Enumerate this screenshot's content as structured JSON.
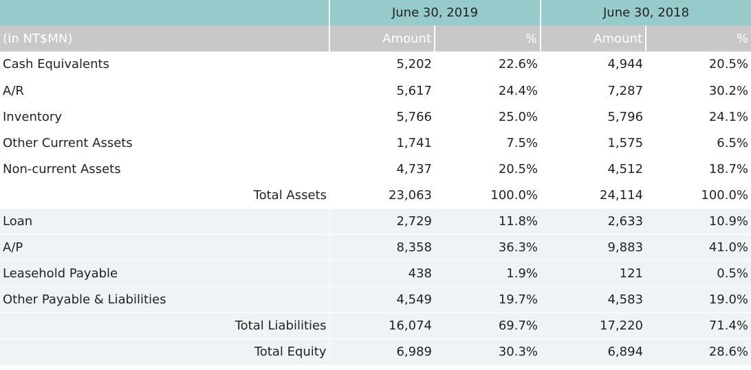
{
  "header": {
    "periods": [
      "June 30, 2019",
      "June 30, 2018"
    ],
    "unit": "(In NT$MN)",
    "columns": [
      "Amount",
      "%",
      "Amount",
      "%"
    ]
  },
  "rows": [
    {
      "label": "Cash Equivalents",
      "v": [
        "5,202",
        "22.6%",
        "4,944",
        "20.5%"
      ]
    },
    {
      "label": "A/R",
      "v": [
        "5,617",
        "24.4%",
        "7,287",
        "30.2%"
      ]
    },
    {
      "label": "Inventory",
      "v": [
        "5,766",
        "25.0%",
        "5,796",
        "24.1%"
      ]
    },
    {
      "label": "Other Current Assets",
      "v": [
        "1,741",
        "7.5%",
        "1,575",
        "6.5%"
      ]
    },
    {
      "label": "Non-current Assets",
      "v": [
        "4,737",
        "20.5%",
        "4,512",
        "18.7%"
      ]
    },
    {
      "label": "Total Assets",
      "v": [
        "23,063",
        "100.0%",
        "24,114",
        "100.0%"
      ]
    },
    {
      "label": "Loan",
      "v": [
        "2,729",
        "11.8%",
        "2,633",
        "10.9%"
      ]
    },
    {
      "label": "A/P",
      "v": [
        "8,358",
        "36.3%",
        "9,883",
        "41.0%"
      ]
    },
    {
      "label": "Leasehold Payable",
      "v": [
        "438",
        "1.9%",
        "121",
        "0.5%"
      ]
    },
    {
      "label": "Other Payable & Liabilities",
      "v": [
        "4,549",
        "19.7%",
        "4,583",
        "19.0%"
      ]
    },
    {
      "label": "Total Liabilities",
      "v": [
        "16,074",
        "69.7%",
        "17,220",
        "71.4%"
      ]
    },
    {
      "label": "Total Equity",
      "v": [
        "6,989",
        "30.3%",
        "6,894",
        "28.6%"
      ]
    }
  ],
  "colors": {
    "period_header": "#97cbcb",
    "column_header": "#c8c8c8",
    "shaded_row": "#eef3f5"
  }
}
